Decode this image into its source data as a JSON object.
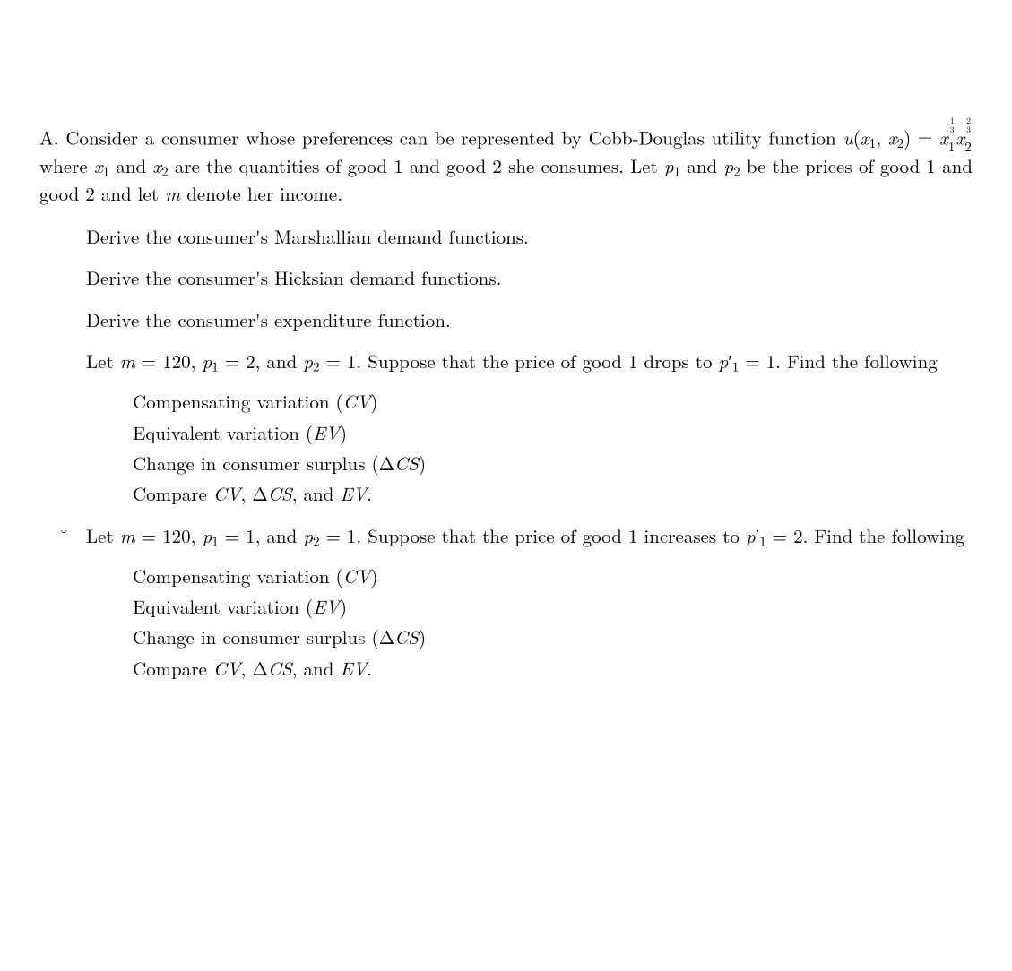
{
  "colors": {
    "text": "#000000",
    "background": "#ffffff"
  },
  "typography": {
    "body_fontsize_pt": 16,
    "line_height": 1.35,
    "family": "Computer Modern / serif"
  },
  "problem": {
    "label": "A.",
    "intro_pre": "Consider a consumer whose preferences can be represented by Cobb-Douglas utility function ",
    "u_lhs": "u(x₁, x₂)",
    "eq": " = ",
    "exp1_num": "1",
    "exp1_den": "3",
    "exp2_num": "2",
    "exp2_den": "3",
    "intro_mid1": " where ",
    "intro_mid2": " and ",
    "intro_mid3": " are the quantities of good 1 and good 2 she consumes. Let ",
    "intro_mid4": " and ",
    "intro_mid5": " be the prices of good 1 and good 2 and let ",
    "intro_end": " denote her income.",
    "tasks": {
      "t1": "Derive the consumer's Marshallian demand functions.",
      "t2": "Derive the consumer's Hicksian demand functions.",
      "t3": "Derive the consumer's expenditure function.",
      "t4_pre": "Let ",
      "t4_m": "m = 120",
      "t4_p1": "p₁ = 2",
      "t4_and": ", and ",
      "t4_p2": "p₂ = 1",
      "t4_mid": ". Suppose that the price of good 1 drops to ",
      "t4_p1prime": "p′₁ = 1",
      "t4_end": ". Find the following",
      "t5_pre": "Let ",
      "t5_m": "m = 120",
      "t5_p1": "p₁ = 1",
      "t5_and": ", and ",
      "t5_p2": "p₂ = 1",
      "t5_mid": ". Suppose that the price of good 1 increases to ",
      "t5_p1prime": "p′₁ = 2",
      "t5_end": ". Find the following"
    },
    "sub_items": {
      "cv": "Compensating variation (",
      "cv_sym": "CV",
      "cv_close": ")",
      "ev": "Equivalent variation (",
      "ev_sym": "EV",
      "ev_close": ")",
      "dcs": "Change in consumer surplus (Δ",
      "dcs_sym": "CS",
      "dcs_close": ")",
      "compare_pre": "Compare ",
      "compare_cv": "CV",
      "compare_sep1": ", Δ",
      "compare_cs": "CS",
      "compare_sep2": ", and ",
      "compare_ev": "EV",
      "compare_end": "."
    }
  }
}
